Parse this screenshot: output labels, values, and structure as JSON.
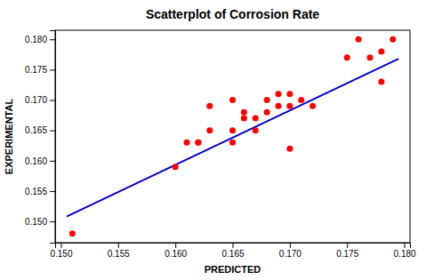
{
  "chart_data": {
    "type": "scatter",
    "title": "Scatterplot of Corrosion Rate",
    "xlabel": "PREDICTED",
    "ylabel": "EXPERIMENTAL",
    "series": [
      {
        "type": "scatter",
        "color": "#FF0000",
        "x": [
          0.151,
          0.16,
          0.161,
          0.162,
          0.162,
          0.163,
          0.163,
          0.165,
          0.165,
          0.165,
          0.166,
          0.166,
          0.167,
          0.167,
          0.168,
          0.168,
          0.169,
          0.169,
          0.17,
          0.17,
          0.17,
          0.171,
          0.172,
          0.175,
          0.176,
          0.177,
          0.178,
          0.178,
          0.179
        ],
        "values": [
          0.148,
          0.159,
          0.163,
          0.163,
          0.163,
          0.165,
          0.169,
          0.163,
          0.165,
          0.17,
          0.167,
          0.168,
          0.165,
          0.167,
          0.168,
          0.17,
          0.169,
          0.171,
          0.162,
          0.169,
          0.171,
          0.17,
          0.169,
          0.177,
          0.18,
          0.177,
          0.173,
          0.178,
          0.18
        ]
      },
      {
        "type": "line",
        "color": "#0000CC",
        "x": [
          0.1505,
          0.1795
        ],
        "values": [
          0.1508,
          0.1768
        ]
      }
    ],
    "xlim": [
      0.1495,
      0.1805
    ],
    "ylim": [
      0.1465,
      0.1815
    ],
    "xticks": [
      {
        "value": 0.15,
        "label": "0.150"
      },
      0.155,
      {
        "value": 0.16,
        "label": "0.160"
      },
      0.165,
      {
        "value": 0.17,
        "label": "0.170"
      },
      0.175,
      {
        "value": 0.18,
        "label": "0.180"
      }
    ],
    "yticks": [
      {
        "value": 0.15,
        "label": "0.150"
      },
      0.155,
      {
        "value": 0.16,
        "label": "0.160"
      },
      0.165,
      {
        "value": 0.17,
        "label": "0.170"
      },
      0.175,
      {
        "value": 0.18,
        "label": "0.180"
      }
    ],
    "grid": false
  }
}
